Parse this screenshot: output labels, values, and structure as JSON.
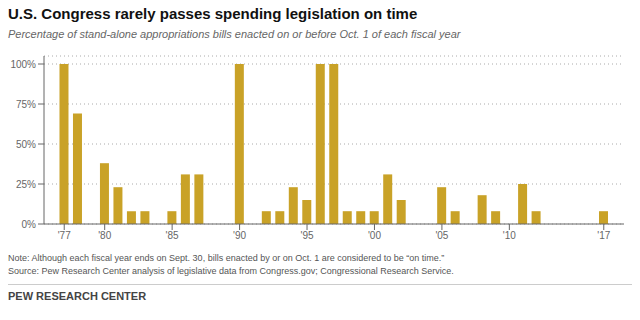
{
  "chart_data": {
    "type": "bar",
    "title": "U.S. Congress rarely passes spending legislation on time",
    "subtitle": "Percentage of stand-alone appropriations bills enacted on or before Oct. 1 of each fiscal year",
    "annotations": [
      "Note: Although each fiscal year ends on Sept. 30, bills enacted by or on Oct. 1 are considered to be “on time.”",
      "Source: Pew Research Center analysis of legislative data from Congress.gov; Congressional Research Service.",
      "PEW RESEARCH CENTER"
    ],
    "x": [
      1977,
      1978,
      1979,
      1980,
      1981,
      1982,
      1983,
      1984,
      1985,
      1986,
      1987,
      1988,
      1989,
      1990,
      1991,
      1992,
      1993,
      1994,
      1995,
      1996,
      1997,
      1998,
      1999,
      2000,
      2001,
      2002,
      2003,
      2004,
      2005,
      2006,
      2007,
      2008,
      2009,
      2010,
      2011,
      2012,
      2013,
      2014,
      2015,
      2016,
      2017
    ],
    "values": [
      100,
      69,
      0,
      38,
      23,
      8,
      8,
      0,
      8,
      31,
      31,
      0,
      0,
      100,
      0,
      8,
      8,
      23,
      15,
      100,
      100,
      8,
      8,
      8,
      31,
      15,
      0,
      0,
      23,
      8,
      0,
      18,
      8,
      0,
      25,
      8,
      0,
      0,
      0,
      0,
      8
    ],
    "color": "#C9A227",
    "xlim": [
      1975.5,
      2018.5
    ],
    "xticks": [
      {
        "value": 1977,
        "label": "'77"
      },
      {
        "value": 1980,
        "label": "'80"
      },
      {
        "value": 1985,
        "label": "'85"
      },
      {
        "value": 1990,
        "label": "'90"
      },
      {
        "value": 1995,
        "label": "'95"
      },
      {
        "value": 2000,
        "label": "'00"
      },
      {
        "value": 2005,
        "label": "'05"
      },
      {
        "value": 2010,
        "label": "'10"
      },
      {
        "value": 2017,
        "label": "'17"
      }
    ],
    "ylim": [
      0,
      105
    ],
    "yticks": [
      {
        "value": 0,
        "label": "0%"
      },
      {
        "value": 25,
        "label": "25%"
      },
      {
        "value": 50,
        "label": "50%"
      },
      {
        "value": 75,
        "label": "75%"
      },
      {
        "value": 100,
        "label": "100%"
      }
    ],
    "grid": true
  }
}
